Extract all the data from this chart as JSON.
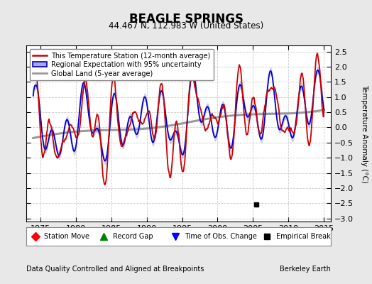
{
  "title": "BEAGLE SPRINGS",
  "subtitle": "44.467 N, 112.983 W (United States)",
  "ylabel": "Temperature Anomaly (°C)",
  "xlabel_note": "Data Quality Controlled and Aligned at Breakpoints",
  "credit": "Berkeley Earth",
  "xlim": [
    1973,
    2016
  ],
  "ylim": [
    -3.1,
    2.7
  ],
  "yticks": [
    -3,
    -2.5,
    -2,
    -1.5,
    -1,
    -0.5,
    0,
    0.5,
    1,
    1.5,
    2,
    2.5
  ],
  "xticks": [
    1975,
    1980,
    1985,
    1990,
    1995,
    2000,
    2005,
    2010,
    2015
  ],
  "empirical_break_year": 2005.5,
  "empirical_break_value": -2.55,
  "bg_color": "#e8e8e8",
  "plot_bg_color": "#ffffff",
  "red_color": "#cc0000",
  "blue_color": "#0000cc",
  "blue_fill_color": "#aaaadd",
  "gray_color": "#999999",
  "legend_items": [
    "This Temperature Station (12-month average)",
    "Regional Expectation with 95% uncertainty",
    "Global Land (5-year average)"
  ]
}
